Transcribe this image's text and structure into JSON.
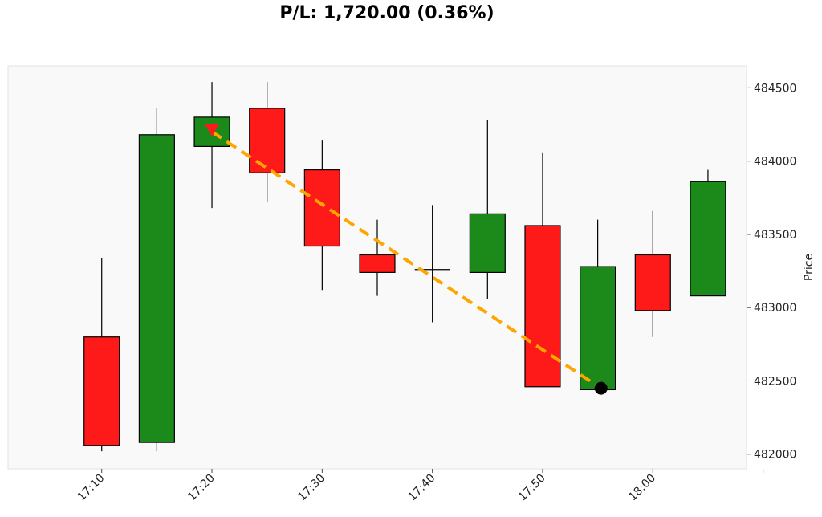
{
  "chart_data": {
    "type": "candlestick",
    "title": "P/L: 1,720.00 (0.36%)",
    "ylabel": "Price",
    "xlabel": "",
    "ylim": [
      481900,
      484650
    ],
    "yticks": [
      482000,
      482500,
      483000,
      483500,
      484000,
      484500
    ],
    "x_tick_labels": [
      "17:10",
      "17:20",
      "17:30",
      "17:40",
      "17:50",
      "18:00",
      ""
    ],
    "x_tick_minutes": [
      10,
      20,
      30,
      40,
      50,
      60,
      70
    ],
    "xlim_minutes": [
      1.5,
      68.5
    ],
    "candle_width_minutes": 3.2,
    "grid": false,
    "candles": [
      {
        "t": 10,
        "open": 482800,
        "high": 483340,
        "low": 482020,
        "close": 482060
      },
      {
        "t": 15,
        "open": 482080,
        "high": 484360,
        "low": 482020,
        "close": 484180
      },
      {
        "t": 20,
        "open": 484100,
        "high": 484540,
        "low": 483680,
        "close": 484300
      },
      {
        "t": 25,
        "open": 484360,
        "high": 484540,
        "low": 483720,
        "close": 483920
      },
      {
        "t": 30,
        "open": 483940,
        "high": 484140,
        "low": 483120,
        "close": 483420
      },
      {
        "t": 35,
        "open": 483360,
        "high": 483600,
        "low": 483080,
        "close": 483240
      },
      {
        "t": 40,
        "open": 483260,
        "high": 483700,
        "low": 482900,
        "close": 483260
      },
      {
        "t": 45,
        "open": 483240,
        "high": 484280,
        "low": 483060,
        "close": 483640
      },
      {
        "t": 50,
        "open": 483560,
        "high": 484060,
        "low": 482460,
        "close": 482460
      },
      {
        "t": 55,
        "open": 482440,
        "high": 483600,
        "low": 482440,
        "close": 483280
      },
      {
        "t": 60,
        "open": 483360,
        "high": 483660,
        "low": 482800,
        "close": 482980
      },
      {
        "t": 65,
        "open": 483080,
        "high": 483940,
        "low": 483080,
        "close": 483860
      }
    ],
    "trade": {
      "entry": {
        "t": 20,
        "price": 484200,
        "marker": "triangle-down"
      },
      "exit": {
        "t": 55.3,
        "price": 482450,
        "marker": "circle"
      }
    },
    "colors": {
      "up": "#1b8a1b",
      "down": "#ff1a1a",
      "trade_line": "#ffa500",
      "entry_marker": "#ff1a1a",
      "exit_marker": "#000000",
      "plot_bg": "#f9f9f9",
      "frame": "#e3e3e3"
    }
  }
}
